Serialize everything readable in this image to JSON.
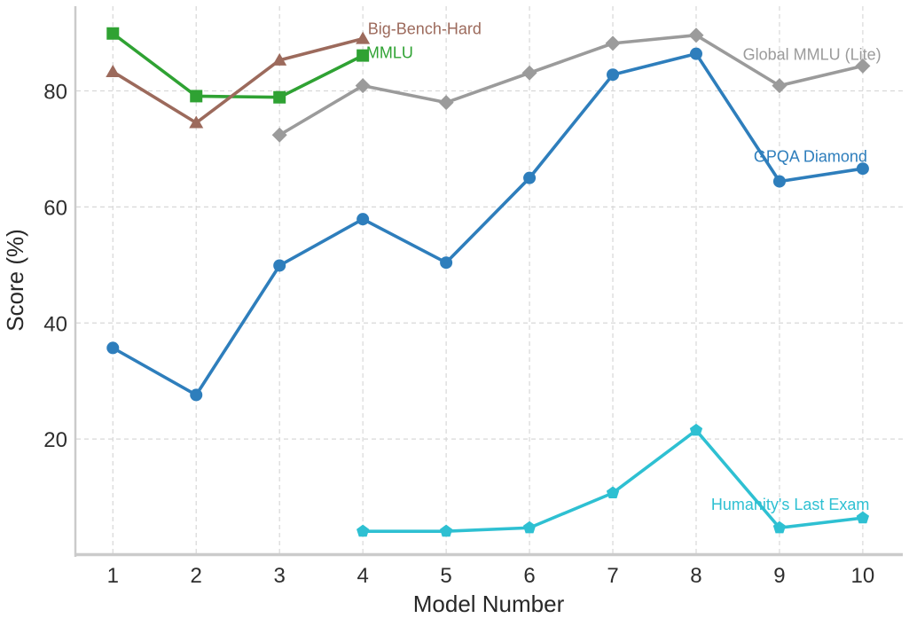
{
  "figure": {
    "background": "#ffffff",
    "grid_color": "#d8d8d8",
    "spine_color": "#cbcbcb",
    "text_color": "#2e2e2e"
  },
  "chart_data": {
    "type": "line",
    "title": "",
    "xlabel": "Model Number",
    "ylabel": "Score (%)",
    "x_ticks": [
      1,
      2,
      3,
      4,
      5,
      6,
      7,
      8,
      9,
      10
    ],
    "y_ticks": [
      20,
      40,
      60,
      80
    ],
    "xlim": [
      0.55,
      10.48
    ],
    "ylim": [
      0,
      94.6
    ],
    "grid": true,
    "legend_position": "inline-annotations",
    "series": [
      {
        "name": "Global MMLU (Lite)",
        "color": "#9b9b9b",
        "marker": "diamond",
        "x": [
          3,
          4,
          5,
          6,
          7,
          8,
          9,
          10
        ],
        "values": [
          72.4,
          80.9,
          78.0,
          83.1,
          88.2,
          89.6,
          80.9,
          84.3
        ],
        "label_anchor": {
          "x": 8.56,
          "y": 86.3
        }
      },
      {
        "name": "MMLU",
        "color": "#2fa233",
        "marker": "square",
        "x": [
          1,
          2,
          3,
          4
        ],
        "values": [
          89.9,
          79.1,
          78.9,
          86.1
        ],
        "label_anchor": {
          "x": 4.04,
          "y": 86.6
        }
      },
      {
        "name": "Big-Bench-Hard",
        "color": "#9c6a5c",
        "marker": "triangle-up",
        "x": [
          1,
          2,
          3,
          4
        ],
        "values": [
          83.3,
          74.5,
          85.3,
          89.0
        ],
        "label_anchor": {
          "x": 4.06,
          "y": 90.7
        }
      },
      {
        "name": "GPQA Diamond",
        "color": "#2e7ebc",
        "marker": "circle",
        "x": [
          1,
          2,
          3,
          4,
          5,
          6,
          7,
          8,
          9,
          10
        ],
        "values": [
          35.7,
          27.6,
          49.9,
          57.9,
          50.4,
          65.0,
          82.8,
          86.4,
          64.4,
          66.6
        ],
        "label_anchor": {
          "x": 8.69,
          "y": 68.7
        }
      },
      {
        "name": "Humanity's Last Exam",
        "color": "#2ec0d2",
        "marker": "pentagon",
        "x": [
          4,
          5,
          6,
          7,
          8,
          9,
          10
        ],
        "values": [
          4.1,
          4.1,
          4.7,
          10.7,
          21.5,
          4.7,
          6.4
        ],
        "label_anchor": {
          "x": 8.18,
          "y": 8.7
        }
      }
    ]
  }
}
